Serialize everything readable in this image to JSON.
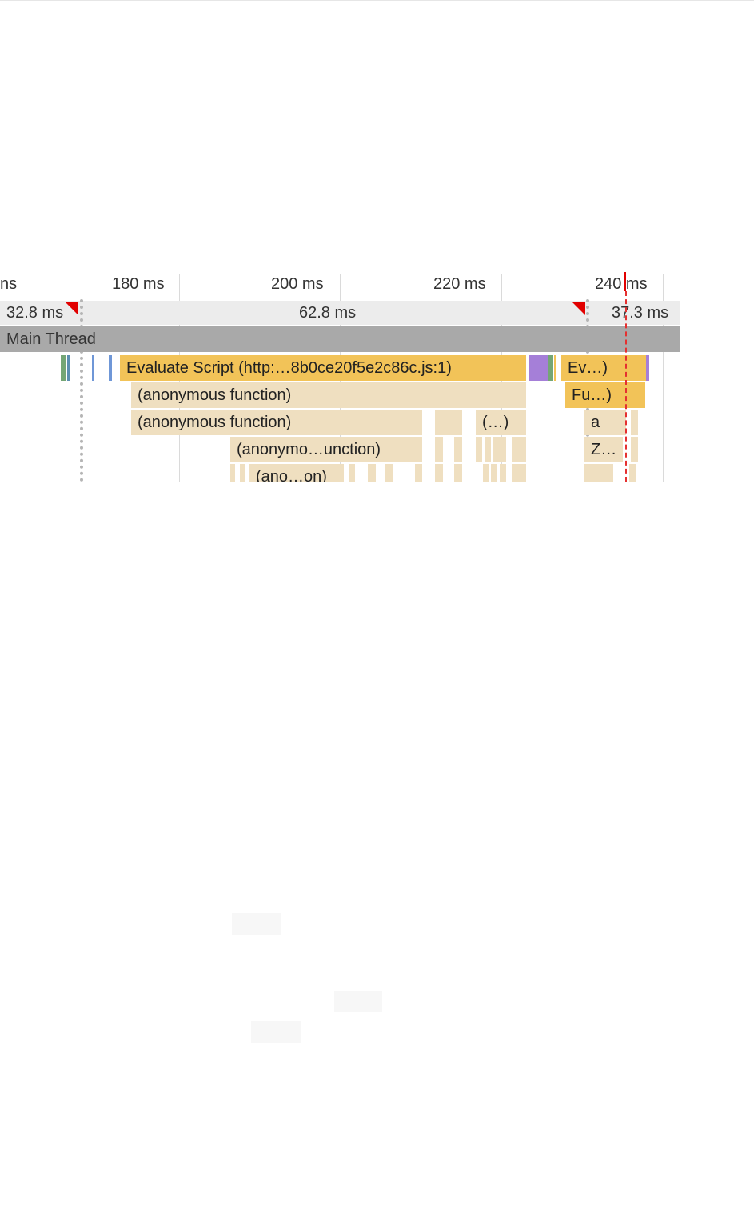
{
  "timeline": {
    "ticks": [
      "ns",
      "180 ms",
      "200 ms",
      "220 ms",
      "240 ms"
    ],
    "frames": [
      "32.8 ms",
      "62.8 ms",
      "37.3 ms"
    ],
    "thread_title": "Main Thread",
    "flame": {
      "evaluate_script": "Evaluate Script (http:…8b0ce20f5e2c86c.js:1)",
      "anon_fn_1": "(anonymous function)",
      "anon_fn_2": "(anonymous function)",
      "ellipsis_fn": "(…)",
      "anon_short": "(anonymo…unction)",
      "anon_shortest": "(ano…on)",
      "ev_short": "Ev…)",
      "fu_short": "Fu…)",
      "a_short": "a",
      "z_short": "Z…"
    }
  },
  "colors": {
    "script": "#f2c358",
    "function": "#efdfc0",
    "thread_header": "#a9a9a9",
    "frame_row": "#ececec",
    "current_time": "#e10000"
  }
}
